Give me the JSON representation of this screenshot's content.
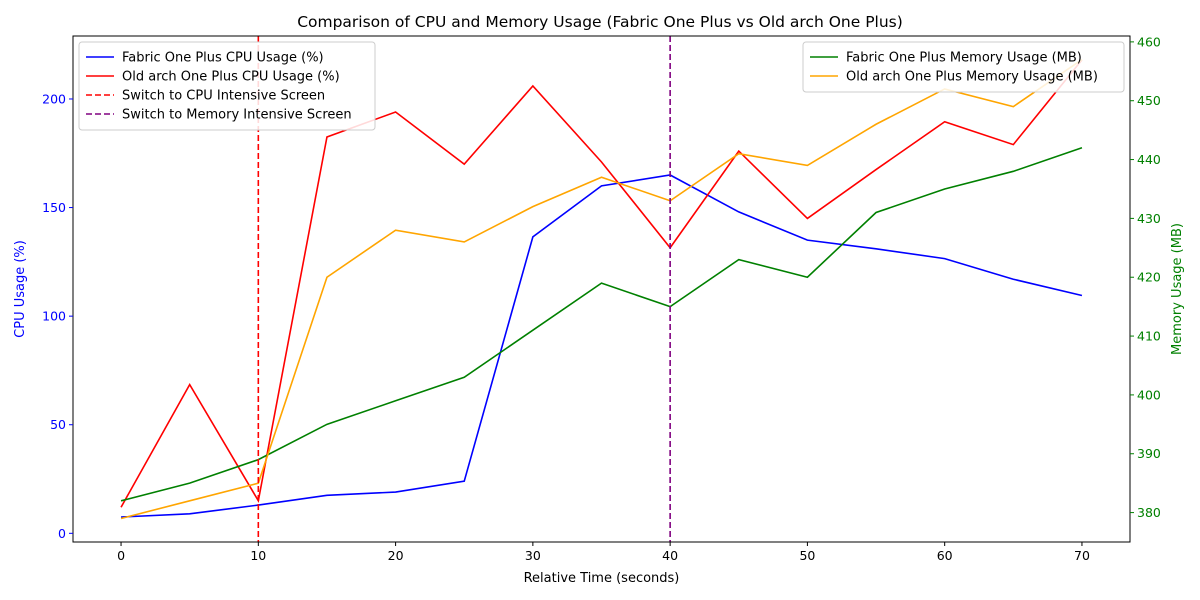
{
  "chart_data": {
    "type": "line",
    "title": "Comparison of CPU and Memory Usage (Fabric One Plus vs Old arch One Plus)",
    "xlabel": "Relative Time (seconds)",
    "ylabel_left": "CPU Usage (%)",
    "ylabel_right": "Memory Usage (MB)",
    "x": [
      0,
      5,
      10,
      15,
      20,
      25,
      30,
      35,
      40,
      45,
      50,
      55,
      60,
      65,
      70
    ],
    "xlim": [
      -3.5,
      73.5
    ],
    "xticks": [
      0,
      10,
      20,
      30,
      40,
      50,
      60,
      70
    ],
    "ylim_left": [
      -4,
      229
    ],
    "yticks_left": [
      0,
      50,
      100,
      150,
      200
    ],
    "ylim_right": [
      375,
      461
    ],
    "yticks_right": [
      380,
      390,
      400,
      410,
      420,
      430,
      440,
      450,
      460
    ],
    "left_axis_color": "#0000ff",
    "right_axis_color": "#008000",
    "grid": false,
    "series_left": [
      {
        "name": "Fabric One Plus CPU Usage (%)",
        "color": "#0000ff",
        "values": [
          7.5,
          9,
          13,
          17.5,
          19,
          24,
          136.5,
          160,
          165,
          148,
          135,
          131,
          126.5,
          117,
          109.5
        ]
      },
      {
        "name": "Old arch One Plus CPU Usage (%)",
        "color": "#ff0000",
        "values": [
          12,
          68.5,
          15,
          182.5,
          194,
          170,
          206,
          171,
          131.5,
          176,
          145,
          167.5,
          189.5,
          179,
          218
        ]
      }
    ],
    "series_right": [
      {
        "name": "Fabric One Plus Memory Usage (MB)",
        "color": "#008000",
        "values": [
          382,
          385,
          389,
          395,
          399,
          403,
          411,
          419,
          415,
          423,
          420,
          431,
          435,
          438,
          442
        ]
      },
      {
        "name": "Old arch One Plus Memory Usage (MB)",
        "color": "#ffa500",
        "values": [
          379,
          382,
          385,
          420,
          428,
          426,
          432,
          437,
          433,
          441,
          439,
          446,
          452,
          449,
          457
        ]
      }
    ],
    "vlines": [
      {
        "name": "Switch to CPU Intensive Screen",
        "x": 10,
        "color": "#ff0000"
      },
      {
        "name": "Switch to Memory Intensive Screen",
        "x": 40,
        "color": "#800080"
      }
    ],
    "legend_left_position": "upper-left",
    "legend_right_position": "upper-right"
  }
}
